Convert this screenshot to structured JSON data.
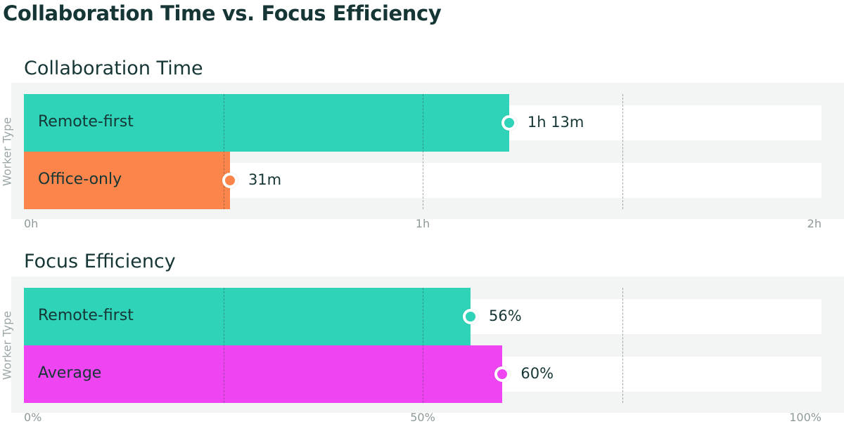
{
  "title": "Collaboration Time vs. Focus Efficiency",
  "colors": {
    "remote_first": "#2fd3b7",
    "office_only": "#fb854b",
    "average": "#ef44f2"
  },
  "chart_data": [
    {
      "type": "bar",
      "orientation": "horizontal",
      "title": "Collaboration Time",
      "ylabel": "Worker Type",
      "xlabel": "",
      "categories": [
        "Remote-first",
        "Office-only"
      ],
      "values": [
        73,
        31
      ],
      "value_unit": "minutes",
      "value_labels": [
        "1h 13m",
        "31m"
      ],
      "colors": [
        "#2fd3b7",
        "#fb854b"
      ],
      "xlim": [
        0,
        120
      ],
      "ticks": [
        0,
        60,
        120
      ],
      "tick_labels": [
        "0h",
        "1h",
        "2h"
      ],
      "gridlines": [
        30,
        60,
        90
      ]
    },
    {
      "type": "bar",
      "orientation": "horizontal",
      "title": "Focus Efficiency",
      "ylabel": "Worker Type",
      "xlabel": "",
      "categories": [
        "Remote-first",
        "Average"
      ],
      "values": [
        56,
        60
      ],
      "value_unit": "percent",
      "value_labels": [
        "56%",
        "60%"
      ],
      "colors": [
        "#2fd3b7",
        "#ef44f2"
      ],
      "xlim": [
        0,
        100
      ],
      "ticks": [
        0,
        50,
        100
      ],
      "tick_labels": [
        "0%",
        "50%",
        "100%"
      ],
      "gridlines": [
        25,
        50,
        75
      ]
    }
  ]
}
